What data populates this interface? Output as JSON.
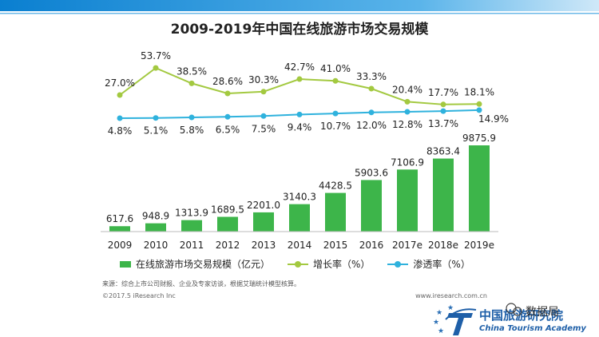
{
  "chart_data": {
    "type": "bar",
    "title": "2009-2019年中国在线旅游市场交易规模",
    "categories": [
      "2009",
      "2010",
      "2011",
      "2012",
      "2013",
      "2014",
      "2015",
      "2016",
      "2017e",
      "2018e",
      "2019e"
    ],
    "series": [
      {
        "name": "在线旅游市场交易规模（亿元）",
        "type": "bar",
        "values": [
          617.6,
          948.9,
          1313.9,
          1689.5,
          2201.0,
          3140.3,
          4428.5,
          5903.6,
          7106.9,
          8363.4,
          9875.9
        ],
        "labels": [
          "617.6",
          "948.9",
          "1313.9",
          "1689.5",
          "2201.0",
          "3140.3",
          "4428.5",
          "5903.6",
          "7106.9",
          "8363.4",
          "9875.9"
        ]
      },
      {
        "name": "增长率（%）",
        "type": "line",
        "values": [
          27.0,
          53.7,
          38.5,
          28.6,
          30.3,
          42.7,
          41.0,
          33.3,
          20.4,
          17.7,
          18.1
        ],
        "labels": [
          "27.0%",
          "53.7%",
          "38.5%",
          "28.6%",
          "30.3%",
          "42.7%",
          "41.0%",
          "33.3%",
          "20.4%",
          "17.7%",
          "18.1%"
        ]
      },
      {
        "name": "渗透率（%）",
        "type": "line",
        "values": [
          4.8,
          5.1,
          5.8,
          6.5,
          7.5,
          9.4,
          10.7,
          12.0,
          12.8,
          13.7,
          14.9
        ],
        "labels": [
          "4.8%",
          "5.1%",
          "5.8%",
          "6.5%",
          "7.5%",
          "9.4%",
          "10.7%",
          "12.0%",
          "12.8%",
          "13.7%",
          "14.9%"
        ]
      }
    ],
    "colors": {
      "bar": "#3db54a",
      "growth": "#a3c940",
      "penetration": "#2fb2dd"
    },
    "legend": "bottom",
    "grid": false
  },
  "notes": {
    "source": "来源：综合上市公司财报、企业及专家访谈，根据艾瑞统计模型核算。",
    "copyright": "©2017.5 iResearch Inc",
    "site": "www.iresearch.com.cn"
  },
  "brand": {
    "name_cn": "中国旅游研究院",
    "name_en": "China Tourism Academy",
    "wechat": "数据局",
    "accent": "#1f6fb8"
  }
}
